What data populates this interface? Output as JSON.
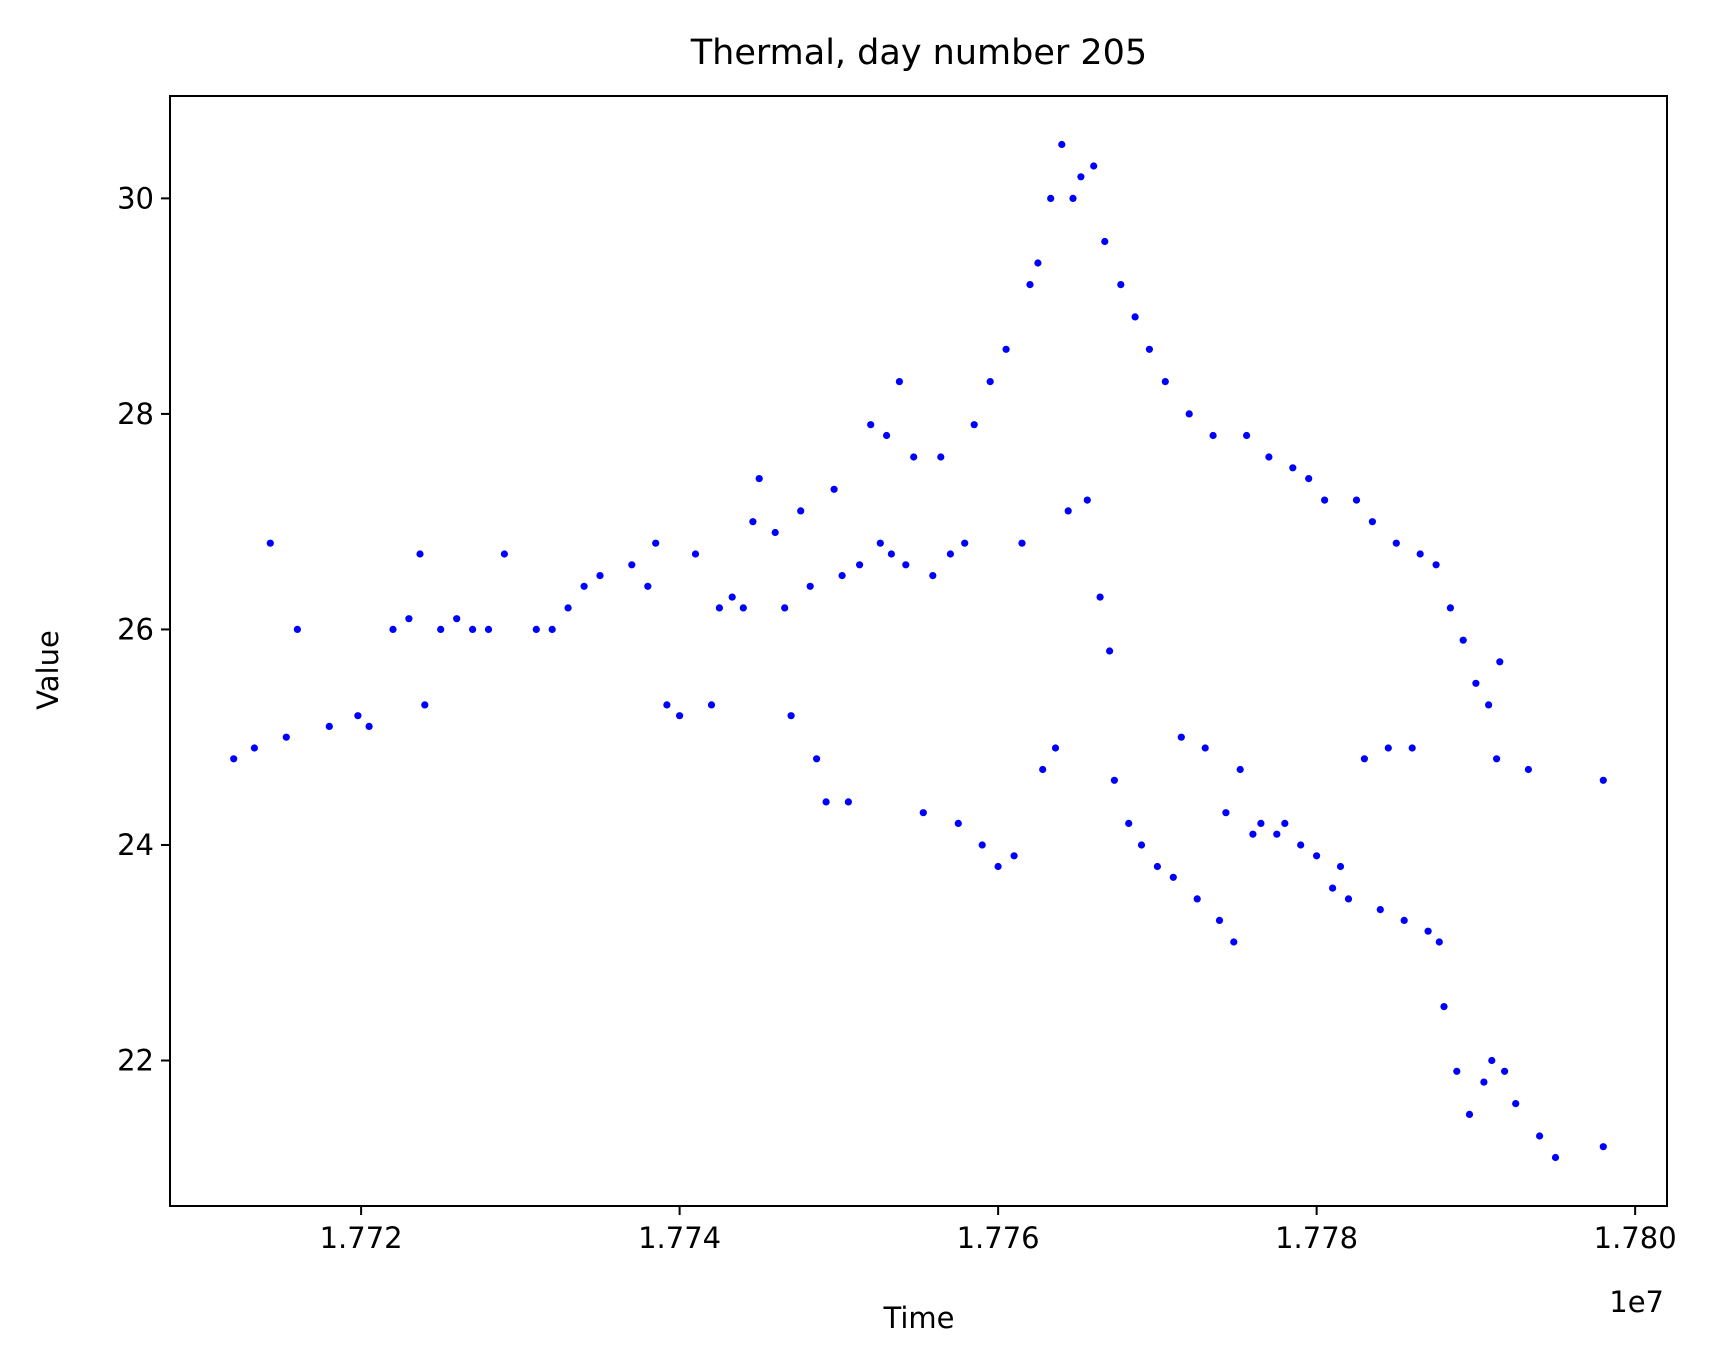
{
  "chart_data": {
    "type": "scatter",
    "title": "Thermal, day number 205",
    "xlabel": "Time",
    "ylabel": "Value",
    "x_offset_label": "1e7",
    "xlim": [
      17708000,
      17802000
    ],
    "ylim": [
      20.65,
      30.95
    ],
    "x_ticks": [
      {
        "value": 17720000,
        "label": "1.772"
      },
      {
        "value": 17740000,
        "label": "1.774"
      },
      {
        "value": 17760000,
        "label": "1.776"
      },
      {
        "value": 17780000,
        "label": "1.778"
      },
      {
        "value": 17800000,
        "label": "1.780"
      }
    ],
    "y_ticks": [
      {
        "value": 22,
        "label": "22"
      },
      {
        "value": 24,
        "label": "24"
      },
      {
        "value": 26,
        "label": "26"
      },
      {
        "value": 28,
        "label": "28"
      },
      {
        "value": 30,
        "label": "30"
      }
    ],
    "grid": false,
    "marker_color": "#0000ff",
    "series": [
      {
        "values": [
          [
            17712000,
            24.8
          ],
          [
            17713300,
            24.9
          ],
          [
            17714300,
            26.8
          ],
          [
            17715300,
            25.0
          ],
          [
            17716000,
            26.0
          ],
          [
            17718000,
            25.1
          ],
          [
            17719800,
            25.2
          ],
          [
            17720500,
            25.1
          ],
          [
            17722000,
            26.0
          ],
          [
            17723000,
            26.1
          ],
          [
            17723700,
            26.7
          ],
          [
            17724000,
            25.3
          ],
          [
            17725000,
            26.0
          ],
          [
            17726000,
            26.1
          ],
          [
            17727000,
            26.0
          ],
          [
            17728000,
            26.0
          ],
          [
            17729000,
            26.7
          ],
          [
            17731000,
            26.0
          ],
          [
            17732000,
            26.0
          ],
          [
            17733000,
            26.2
          ],
          [
            17734000,
            26.4
          ],
          [
            17735000,
            26.5
          ],
          [
            17737000,
            26.6
          ],
          [
            17738000,
            26.4
          ],
          [
            17738500,
            26.8
          ],
          [
            17739200,
            25.3
          ],
          [
            17740000,
            25.2
          ],
          [
            17741000,
            26.7
          ],
          [
            17742000,
            25.3
          ],
          [
            17742500,
            26.2
          ],
          [
            17743300,
            26.3
          ],
          [
            17744000,
            26.2
          ],
          [
            17744600,
            27.0
          ],
          [
            17745000,
            27.4
          ],
          [
            17746000,
            26.9
          ],
          [
            17746600,
            26.2
          ],
          [
            17747000,
            25.2
          ],
          [
            17747600,
            27.1
          ],
          [
            17748200,
            26.4
          ],
          [
            17748600,
            24.8
          ],
          [
            17749200,
            24.4
          ],
          [
            17749700,
            27.3
          ],
          [
            17750200,
            26.5
          ],
          [
            17750600,
            24.4
          ],
          [
            17751300,
            26.6
          ],
          [
            17752000,
            27.9
          ],
          [
            17752600,
            26.8
          ],
          [
            17753000,
            27.8
          ],
          [
            17753300,
            26.7
          ],
          [
            17753800,
            28.3
          ],
          [
            17754200,
            26.6
          ],
          [
            17754700,
            27.6
          ],
          [
            17755300,
            24.3
          ],
          [
            17755900,
            26.5
          ],
          [
            17756400,
            27.6
          ],
          [
            17757000,
            26.7
          ],
          [
            17757500,
            24.2
          ],
          [
            17757900,
            26.8
          ],
          [
            17758500,
            27.9
          ],
          [
            17759000,
            24.0
          ],
          [
            17759500,
            28.3
          ],
          [
            17760000,
            23.8
          ],
          [
            17760500,
            28.6
          ],
          [
            17761000,
            23.9
          ],
          [
            17761500,
            26.8
          ],
          [
            17762000,
            29.2
          ],
          [
            17762500,
            29.4
          ],
          [
            17762800,
            24.7
          ],
          [
            17763300,
            30.0
          ],
          [
            17763600,
            24.9
          ],
          [
            17764000,
            30.5
          ],
          [
            17764400,
            27.1
          ],
          [
            17764700,
            30.0
          ],
          [
            17765200,
            30.2
          ],
          [
            17765600,
            27.2
          ],
          [
            17766000,
            30.3
          ],
          [
            17766400,
            26.3
          ],
          [
            17766700,
            29.6
          ],
          [
            17767000,
            25.8
          ],
          [
            17767300,
            24.6
          ],
          [
            17767700,
            29.2
          ],
          [
            17768200,
            24.2
          ],
          [
            17768600,
            28.9
          ],
          [
            17769000,
            24.0
          ],
          [
            17769500,
            28.6
          ],
          [
            17770000,
            23.8
          ],
          [
            17770500,
            28.3
          ],
          [
            17771000,
            23.7
          ],
          [
            17771500,
            25.0
          ],
          [
            17772000,
            28.0
          ],
          [
            17772500,
            23.5
          ],
          [
            17773000,
            24.9
          ],
          [
            17773500,
            27.8
          ],
          [
            17773900,
            23.3
          ],
          [
            17774300,
            24.3
          ],
          [
            17774800,
            23.1
          ],
          [
            17775200,
            24.7
          ],
          [
            17775600,
            27.8
          ],
          [
            17776000,
            24.1
          ],
          [
            17776500,
            24.2
          ],
          [
            17777000,
            27.6
          ],
          [
            17777500,
            24.1
          ],
          [
            17778000,
            24.2
          ],
          [
            17778500,
            27.5
          ],
          [
            17779000,
            24.0
          ],
          [
            17779500,
            27.4
          ],
          [
            17780000,
            23.9
          ],
          [
            17780500,
            27.2
          ],
          [
            17781000,
            23.6
          ],
          [
            17781500,
            23.8
          ],
          [
            17782000,
            23.5
          ],
          [
            17782500,
            27.2
          ],
          [
            17783000,
            24.8
          ],
          [
            17783500,
            27.0
          ],
          [
            17784000,
            23.4
          ],
          [
            17784500,
            24.9
          ],
          [
            17785000,
            26.8
          ],
          [
            17785500,
            23.3
          ],
          [
            17786000,
            24.9
          ],
          [
            17786500,
            26.7
          ],
          [
            17787000,
            23.2
          ],
          [
            17787500,
            26.6
          ],
          [
            17787700,
            23.1
          ],
          [
            17788000,
            22.5
          ],
          [
            17788400,
            26.2
          ],
          [
            17788800,
            21.9
          ],
          [
            17789200,
            25.9
          ],
          [
            17789600,
            21.5
          ],
          [
            17790000,
            25.5
          ],
          [
            17790500,
            21.8
          ],
          [
            17790800,
            25.3
          ],
          [
            17791000,
            22.0
          ],
          [
            17791300,
            24.8
          ],
          [
            17791500,
            25.7
          ],
          [
            17791800,
            21.9
          ],
          [
            17792500,
            21.6
          ],
          [
            17793300,
            24.7
          ],
          [
            17794000,
            21.3
          ],
          [
            17795000,
            21.1
          ],
          [
            17798000,
            24.6
          ],
          [
            17798000,
            21.2
          ]
        ]
      }
    ]
  }
}
